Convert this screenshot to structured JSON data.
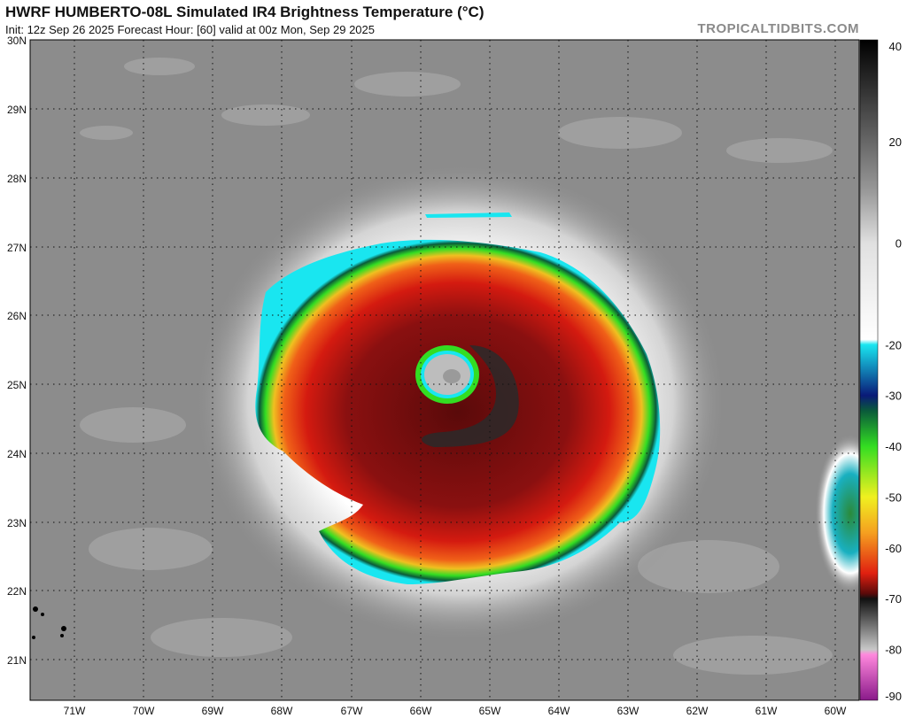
{
  "header": {
    "title": "HWRF HUMBERTO-08L Simulated IR4 Brightness Temperature (°C)",
    "subtitle": "Init: 12z Sep 26 2025   Forecast Hour: [60]   valid at 00z Mon, Sep 29 2025",
    "brand": "TROPICALTIDBITS.COM"
  },
  "map": {
    "lat_labels": [
      "30N",
      "29N",
      "28N",
      "27N",
      "26N",
      "25N",
      "24N",
      "23N",
      "22N",
      "21N"
    ],
    "lon_labels": [
      "71W",
      "70W",
      "69W",
      "68W",
      "67W",
      "66W",
      "65W",
      "64W",
      "63W",
      "62W",
      "61W",
      "60W"
    ],
    "storm_center": {
      "lat": 25.1,
      "lon": -65.4
    },
    "background_color": "#8c8c8c"
  },
  "colorbar": {
    "unit": "°C",
    "tick_labels": [
      "40",
      "20",
      "0",
      "-20",
      "-30",
      "-40",
      "-50",
      "-60",
      "-70",
      "-80",
      "-90"
    ],
    "range": [
      40,
      -90
    ],
    "stops": [
      {
        "t": 40,
        "color": "#000000"
      },
      {
        "t": 10,
        "color": "#9a9a9a"
      },
      {
        "t": 0,
        "color": "#e0e0e0"
      },
      {
        "t": -19,
        "color": "#ffffff"
      },
      {
        "t": -20,
        "color": "#19e6f0"
      },
      {
        "t": -30,
        "color": "#0a1a78"
      },
      {
        "t": -33,
        "color": "#0a5a3a"
      },
      {
        "t": -40,
        "color": "#33dd22"
      },
      {
        "t": -50,
        "color": "#f0f020"
      },
      {
        "t": -57,
        "color": "#f5a020"
      },
      {
        "t": -65,
        "color": "#e02010"
      },
      {
        "t": -69,
        "color": "#5a0a0a"
      },
      {
        "t": -70,
        "color": "#111111"
      },
      {
        "t": -80,
        "color": "#c8c8c8"
      },
      {
        "t": -81,
        "color": "#ff88dd"
      },
      {
        "t": -90,
        "color": "#8a1a8a"
      }
    ]
  }
}
